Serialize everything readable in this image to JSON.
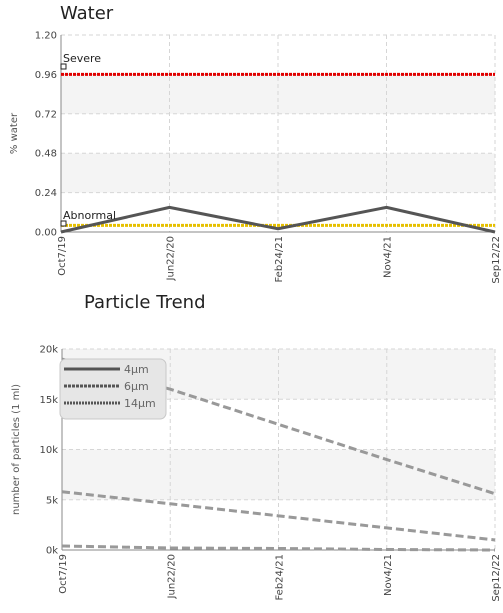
{
  "chart_data": [
    {
      "type": "line",
      "title": "Water",
      "xlabel": "",
      "ylabel": "% water",
      "categories": [
        "Oct7/19",
        "Jun22/20",
        "Feb24/21",
        "Nov4/21",
        "Sep12/22"
      ],
      "ylim": [
        0,
        1.2
      ],
      "yticks": [
        "0.00",
        "0.24",
        "0.48",
        "0.72",
        "0.96",
        "1.20"
      ],
      "grid": true,
      "series": [
        {
          "values": [
            0.0,
            0.15,
            0.02,
            0.15,
            0.0
          ],
          "color": "#555555"
        }
      ],
      "thresholds": [
        {
          "label": "Severe",
          "value": 0.96,
          "color": "#e00000"
        },
        {
          "label": "Abnormal",
          "value": 0.04,
          "color": "#e6c000"
        }
      ]
    },
    {
      "type": "line",
      "title": "Particle Trend",
      "xlabel": "",
      "ylabel": "number of particles (1 ml)",
      "categories": [
        "Oct7/19",
        "Jun22/20",
        "Feb24/21",
        "Nov4/21",
        "Sep12/22"
      ],
      "ylim": [
        0,
        20000
      ],
      "yticks": [
        "0k",
        "5k",
        "10k",
        "15k",
        "20k"
      ],
      "grid": true,
      "legend_position": "top-left",
      "series": [
        {
          "name": "4μm",
          "values": [
            19000,
            16000,
            12500,
            9000,
            5600
          ],
          "color": "#999999"
        },
        {
          "name": "6μm",
          "values": [
            5800,
            4600,
            3400,
            2200,
            1000
          ],
          "color": "#999999"
        },
        {
          "name": "14μm",
          "values": [
            400,
            200,
            150,
            50,
            0
          ],
          "color": "#999999"
        }
      ]
    }
  ]
}
